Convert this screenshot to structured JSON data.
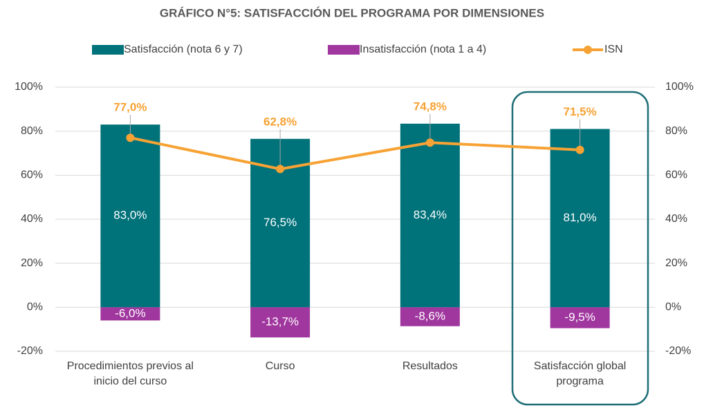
{
  "chart_data": {
    "type": "bar_line",
    "title": "GRÁFICO N°5: SATISFACCIÓN DEL PROGRAMA POR DIMENSIONES",
    "categories": [
      "Procedimientos previos al inicio del curso",
      "Curso",
      "Resultados",
      "Satisfacción global programa"
    ],
    "series": [
      {
        "name": "Satisfacción (nota 6 y 7)",
        "color": "#00727a",
        "kind": "bar",
        "values": [
          83.0,
          76.5,
          83.4,
          81.0
        ],
        "value_labels": [
          "83,0%",
          "76,5%",
          "83,4%",
          "81,0%"
        ]
      },
      {
        "name": "Insatisfacción (nota 1 a 4)",
        "color": "#a0379f",
        "kind": "bar",
        "values": [
          -6.0,
          -13.7,
          -8.6,
          -9.5
        ],
        "value_labels": [
          "-6,0%",
          "-13,7%",
          "-8,6%",
          "-9,5%"
        ]
      },
      {
        "name": "ISN",
        "color": "#f7a234",
        "kind": "line",
        "values": [
          77.0,
          62.8,
          74.8,
          71.5
        ],
        "value_labels": [
          "77,0%",
          "62,8%",
          "74,8%",
          "71,5%"
        ]
      }
    ],
    "ylim": [
      -20,
      100
    ],
    "yticks": [
      {
        "value": -20,
        "label": "-20%"
      },
      {
        "value": 0,
        "label": "0%"
      },
      {
        "value": 20,
        "label": "20%"
      },
      {
        "value": 40,
        "label": "40%"
      },
      {
        "value": 60,
        "label": "60%"
      },
      {
        "value": 80,
        "label": "80%"
      },
      {
        "value": 100,
        "label": "100%"
      }
    ],
    "y2lim": [
      -20,
      100
    ],
    "y2ticks": [
      {
        "value": -20,
        "label": "-20%"
      },
      {
        "value": 0,
        "label": "0%"
      },
      {
        "value": 20,
        "label": "20%"
      },
      {
        "value": 40,
        "label": "40%"
      },
      {
        "value": 60,
        "label": "60%"
      },
      {
        "value": 80,
        "label": "80%"
      },
      {
        "value": 100,
        "label": "100%"
      }
    ],
    "grid": true
  }
}
